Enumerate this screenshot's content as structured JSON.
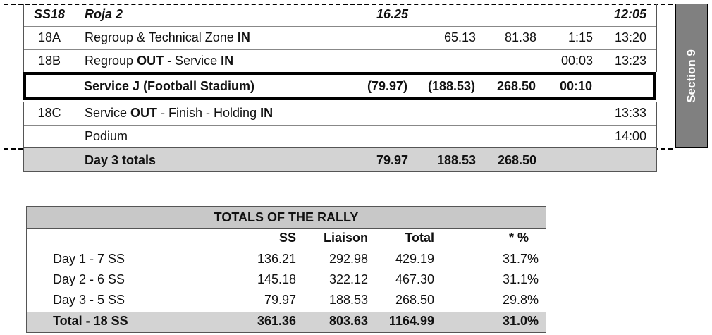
{
  "schedule": {
    "header": {
      "code": "SS18",
      "name": "Roja 2",
      "ss_km": "16.25",
      "time": "12:05"
    },
    "rows": [
      {
        "code": "18A",
        "desc_parts": [
          "Regroup & Technical Zone ",
          "IN"
        ],
        "liaison": "65.13",
        "total": "81.38",
        "duration": "1:15",
        "time": "13:20"
      },
      {
        "code": "18B",
        "desc_parts": [
          "Regroup ",
          "OUT",
          " - Service ",
          "IN"
        ],
        "duration": "00:03",
        "time": "13:23"
      },
      {
        "desc": "Service J (Football Stadium)",
        "ss": "(79.97)",
        "liaison": "(188.53)",
        "total": "268.50",
        "duration": "00:10"
      },
      {
        "code": "18C",
        "desc_parts": [
          "Service ",
          "OUT",
          " -  Finish - Holding ",
          "IN"
        ],
        "time": "13:33"
      },
      {
        "desc": "Podium",
        "time": "14:00"
      }
    ],
    "day_totals": {
      "label": "Day 3 totals",
      "ss": "79.97",
      "liaison": "188.53",
      "total": "268.50"
    }
  },
  "section_tab": {
    "label": "Section 9"
  },
  "rally_totals": {
    "title": "TOTALS OF THE RALLY",
    "headers": {
      "ss": "SS",
      "liaison": "Liaison",
      "total": "Total",
      "pct": "* %"
    },
    "rows": [
      {
        "label": "Day 1 - 7 SS",
        "ss": "136.21",
        "liaison": "292.98",
        "total": "429.19",
        "pct": "31.7%"
      },
      {
        "label": "Day 2 - 6 SS",
        "ss": "145.18",
        "liaison": "322.12",
        "total": "467.30",
        "pct": "31.1%"
      },
      {
        "label": "Day 3 - 5 SS",
        "ss": "79.97",
        "liaison": "188.53",
        "total": "268.50",
        "pct": "29.8%"
      }
    ],
    "grand_total": {
      "label": "Total - 18 SS",
      "ss": "361.36",
      "liaison": "803.63",
      "total": "1164.99",
      "pct": "31.0%"
    }
  }
}
